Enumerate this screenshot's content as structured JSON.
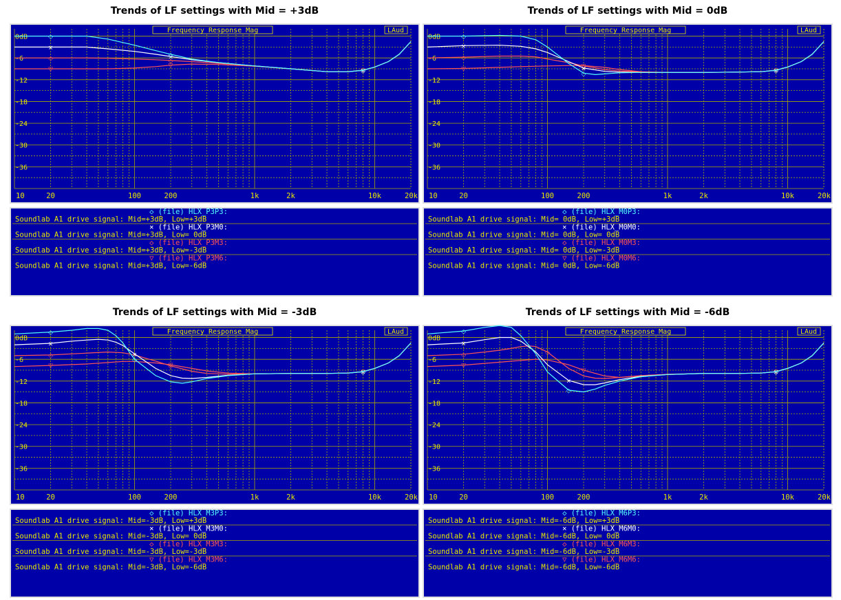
{
  "colors": {
    "background": "#0000a8",
    "grid": "#a8a800",
    "frame": "#e0e0e0",
    "panel_label": "#e8e800",
    "legend_text": "#e8e800",
    "series": [
      "#55ffff",
      "#ffffff",
      "#ff5555",
      "#ff5555"
    ]
  },
  "chart_data": [
    {
      "type": "line",
      "title": "Trends of LF settings with Mid = +3dB",
      "plot_label": "Frequency Response Mag",
      "badge": "LAud",
      "x_scale": "log",
      "xlim": [
        10,
        20000
      ],
      "ylim": [
        -42,
        2
      ],
      "x_ticks": [
        "10",
        "20",
        "100",
        "200",
        "1k",
        "2k",
        "10k",
        "20k"
      ],
      "y_ticks": [
        "0dB",
        "-6",
        "-12",
        "-18",
        "-24",
        "-30",
        "-36"
      ],
      "grid": true,
      "series": [
        {
          "marker": "◇",
          "file": "(file)",
          "name": "HLX_P3P3:",
          "description": "Soundlab A1 drive signal: Mid=+3dB, Low=+3dB",
          "x": [
            10,
            20,
            40,
            60,
            100,
            150,
            200,
            300,
            500,
            1000,
            2000,
            4000,
            6000,
            8000,
            10000,
            13000,
            16000,
            20000
          ],
          "y": [
            0,
            0,
            0,
            -0.8,
            -2.5,
            -4,
            -5,
            -6.3,
            -7.3,
            -8.2,
            -9,
            -9.8,
            -9.8,
            -9.4,
            -8.5,
            -7,
            -5,
            -1.5
          ]
        },
        {
          "marker": "×",
          "file": "(file)",
          "name": "HLX_P3M0:",
          "description": "Soundlab A1 drive signal: Mid=+3dB, Low= 0dB",
          "x": [
            10,
            20,
            40,
            60,
            100,
            150,
            200,
            300,
            500,
            1000,
            2000,
            4000,
            6000,
            8000,
            10000,
            13000,
            16000,
            20000
          ],
          "y": [
            -3,
            -3,
            -3,
            -3.5,
            -4.2,
            -5,
            -5.6,
            -6.5,
            -7.3,
            -8.2,
            -9,
            -9.8,
            -9.8,
            -9.4,
            -8.5,
            -7,
            -5,
            -1.5
          ]
        },
        {
          "marker": "◇",
          "file": "(file)",
          "name": "HLX_P3M3:",
          "description": "Soundlab A1 drive signal: Mid=+3dB, Low=-3dB",
          "x": [
            10,
            20,
            40,
            60,
            100,
            150,
            200,
            300,
            500,
            1000,
            2000,
            4000,
            6000,
            8000,
            10000,
            13000,
            16000,
            20000
          ],
          "y": [
            -6,
            -6,
            -6,
            -6.1,
            -6.3,
            -6.5,
            -6.7,
            -7,
            -7.5,
            -8.2,
            -9,
            -9.8,
            -9.8,
            -9.4,
            -8.5,
            -7,
            -5,
            -1.5
          ]
        },
        {
          "marker": "▽",
          "file": "(file)",
          "name": "HLX_P3M6:",
          "description": "Soundlab A1 drive signal: Mid=+3dB, Low=-6dB",
          "x": [
            10,
            20,
            40,
            60,
            100,
            150,
            200,
            300,
            500,
            1000,
            2000,
            4000,
            6000,
            8000,
            10000,
            13000,
            16000,
            20000
          ],
          "y": [
            -9,
            -9,
            -9,
            -9,
            -8.8,
            -8.4,
            -8,
            -7.7,
            -7.8,
            -8.3,
            -9,
            -9.8,
            -9.8,
            -9.4,
            -8.5,
            -7,
            -5,
            -1.5
          ]
        }
      ]
    },
    {
      "type": "line",
      "title": "Trends of LF settings with Mid =  0dB",
      "plot_label": "Frequency Response Mag",
      "badge": "LAud",
      "x_scale": "log",
      "xlim": [
        10,
        20000
      ],
      "ylim": [
        -42,
        2
      ],
      "x_ticks": [
        "10",
        "20",
        "100",
        "200",
        "1k",
        "2k",
        "10k",
        "20k"
      ],
      "y_ticks": [
        "0dB",
        "-6",
        "-12",
        "-18",
        "-24",
        "-30",
        "-36"
      ],
      "grid": true,
      "series": [
        {
          "marker": "◇",
          "file": "(file)",
          "name": "HLX_M0P3:",
          "description": "Soundlab A1 drive signal: Mid= 0dB, Low=+3dB",
          "x": [
            10,
            20,
            40,
            60,
            80,
            100,
            150,
            200,
            250,
            300,
            400,
            600,
            1000,
            2000,
            4000,
            6000,
            8000,
            10000,
            13000,
            16000,
            20000
          ],
          "y": [
            0,
            0,
            0.2,
            0,
            -1,
            -3,
            -7.5,
            -10.2,
            -10.6,
            -10.4,
            -10.1,
            -10,
            -10,
            -10,
            -9.9,
            -9.8,
            -9.4,
            -8.5,
            -7,
            -5,
            -1.5
          ]
        },
        {
          "marker": "×",
          "file": "(file)",
          "name": "HLX_M0M0:",
          "description": "Soundlab A1 drive signal: Mid= 0dB, Low= 0dB",
          "x": [
            10,
            20,
            40,
            60,
            80,
            100,
            150,
            200,
            300,
            400,
            600,
            1000,
            2000,
            4000,
            6000,
            8000,
            10000,
            13000,
            16000,
            20000
          ],
          "y": [
            -3,
            -2.6,
            -2.5,
            -2.8,
            -3.5,
            -4.5,
            -7,
            -8.8,
            -9.7,
            -9.9,
            -10,
            -10,
            -10,
            -9.9,
            -9.8,
            -9.4,
            -8.5,
            -7,
            -5,
            -1.5
          ]
        },
        {
          "marker": "◇",
          "file": "(file)",
          "name": "HLX_M0M3:",
          "description": "Soundlab A1 drive signal: Mid= 0dB, Low=-3dB",
          "x": [
            10,
            20,
            40,
            60,
            80,
            100,
            150,
            200,
            300,
            400,
            600,
            1000,
            2000,
            4000,
            6000,
            8000,
            10000,
            13000,
            16000,
            20000
          ],
          "y": [
            -6,
            -5.8,
            -5.5,
            -5.5,
            -5.7,
            -6.3,
            -7.3,
            -8.2,
            -9.2,
            -9.6,
            -9.9,
            -10,
            -10,
            -9.9,
            -9.8,
            -9.4,
            -8.5,
            -7,
            -5,
            -1.5
          ]
        },
        {
          "marker": "▽",
          "file": "(file)",
          "name": "HLX_M0M6:",
          "description": "Soundlab A1 drive signal: Mid= 0dB, Low=-6dB",
          "x": [
            10,
            20,
            40,
            60,
            100,
            150,
            200,
            300,
            400,
            600,
            1000,
            2000,
            4000,
            6000,
            8000,
            10000,
            13000,
            16000,
            20000
          ],
          "y": [
            -9,
            -8.9,
            -8.6,
            -8.4,
            -8.2,
            -8.1,
            -8.1,
            -8.6,
            -9.2,
            -9.8,
            -10,
            -10,
            -9.9,
            -9.8,
            -9.4,
            -8.5,
            -7,
            -5,
            -1.5
          ]
        }
      ]
    },
    {
      "type": "line",
      "title": "Trends of LF settings with Mid = -3dB",
      "plot_label": "Frequency Response Mag",
      "badge": "LAud",
      "x_scale": "log",
      "xlim": [
        10,
        20000
      ],
      "ylim": [
        -42,
        2
      ],
      "x_ticks": [
        "10",
        "20",
        "100",
        "200",
        "1k",
        "2k",
        "10k",
        "20k"
      ],
      "y_ticks": [
        "0dB",
        "-6",
        "-12",
        "-18",
        "-24",
        "-30",
        "-36"
      ],
      "grid": true,
      "series": [
        {
          "marker": "◇",
          "file": "(file)",
          "name": "HLX_M3P3:",
          "description": "Soundlab A1 drive signal: Mid=-3dB, Low=+3dB",
          "x": [
            10,
            20,
            30,
            40,
            50,
            60,
            70,
            80,
            100,
            150,
            200,
            250,
            300,
            400,
            600,
            1000,
            2000,
            4000,
            6000,
            8000,
            10000,
            13000,
            16000,
            20000
          ],
          "y": [
            1,
            1.5,
            2,
            2.5,
            2.5,
            2,
            0.5,
            -1.5,
            -6,
            -10.5,
            -12.2,
            -12.6,
            -12.2,
            -11.3,
            -10.5,
            -10,
            -9.9,
            -9.9,
            -9.8,
            -9.4,
            -8.5,
            -7,
            -5,
            -1.5
          ]
        },
        {
          "marker": "×",
          "file": "(file)",
          "name": "HLX_M3M0:",
          "description": "Soundlab A1 drive signal: Mid=-3dB, Low= 0dB",
          "x": [
            10,
            20,
            30,
            40,
            50,
            60,
            70,
            80,
            100,
            150,
            200,
            250,
            300,
            400,
            600,
            1000,
            2000,
            4000,
            6000,
            8000,
            10000,
            13000,
            16000,
            20000
          ],
          "y": [
            -2,
            -1.6,
            -1,
            -0.7,
            -0.5,
            -0.7,
            -1.3,
            -2.2,
            -4.5,
            -8.5,
            -10.5,
            -11.2,
            -11.3,
            -11,
            -10.4,
            -10,
            -9.9,
            -9.9,
            -9.8,
            -9.4,
            -8.5,
            -7,
            -5,
            -1.5
          ]
        },
        {
          "marker": "◇",
          "file": "(file)",
          "name": "HLX_M3M3:",
          "description": "Soundlab A1 drive signal: Mid=-3dB, Low=-3dB",
          "x": [
            10,
            20,
            40,
            60,
            80,
            100,
            150,
            200,
            300,
            400,
            600,
            1000,
            2000,
            4000,
            6000,
            8000,
            10000,
            13000,
            16000,
            20000
          ],
          "y": [
            -5,
            -4.8,
            -4.3,
            -4,
            -4.2,
            -4.8,
            -6.5,
            -7.8,
            -9.3,
            -9.9,
            -10.1,
            -10,
            -9.9,
            -9.9,
            -9.8,
            -9.4,
            -8.5,
            -7,
            -5,
            -1.5
          ]
        },
        {
          "marker": "▽",
          "file": "(file)",
          "name": "HLX_M3M6:",
          "description": "Soundlab A1 drive signal: Mid=-3dB, Low=-6dB",
          "x": [
            10,
            20,
            40,
            60,
            80,
            100,
            150,
            200,
            300,
            400,
            600,
            1000,
            2000,
            4000,
            6000,
            8000,
            10000,
            13000,
            16000,
            20000
          ],
          "y": [
            -8,
            -7.7,
            -7.3,
            -6.9,
            -6.6,
            -6.6,
            -7,
            -7.5,
            -8.5,
            -9.2,
            -9.8,
            -10,
            -9.9,
            -9.9,
            -9.8,
            -9.4,
            -8.5,
            -7,
            -5,
            -1.5
          ]
        }
      ]
    },
    {
      "type": "line",
      "title": "Trends of LF settings with Mid =  -6dB",
      "plot_label": "Frequency Response Mag",
      "badge": "LAud",
      "x_scale": "log",
      "xlim": [
        10,
        20000
      ],
      "ylim": [
        -42,
        2
      ],
      "x_ticks": [
        "10",
        "20",
        "100",
        "200",
        "1k",
        "2k",
        "10k",
        "20k"
      ],
      "y_ticks": [
        "0dB",
        "-6",
        "-12",
        "-18",
        "-24",
        "-30",
        "-36"
      ],
      "grid": true,
      "series": [
        {
          "marker": "◇",
          "file": "(file)",
          "name": "HLX_M6P3:",
          "description": "Soundlab A1 drive signal: Mid=-6dB, Low=+3dB",
          "x": [
            10,
            20,
            30,
            40,
            50,
            60,
            80,
            100,
            150,
            200,
            250,
            300,
            400,
            600,
            1000,
            2000,
            4000,
            6000,
            8000,
            10000,
            13000,
            16000,
            20000
          ],
          "y": [
            1,
            1.8,
            2.8,
            3.3,
            2.8,
            0.5,
            -4.5,
            -9.5,
            -14.5,
            -15,
            -14.2,
            -13.2,
            -12,
            -10.8,
            -10.2,
            -9.9,
            -9.9,
            -9.8,
            -9.4,
            -8.5,
            -7,
            -5,
            -1.5
          ]
        },
        {
          "marker": "×",
          "file": "(file)",
          "name": "HLX_M6M0:",
          "description": "Soundlab A1 drive signal: Mid=-6dB, Low= 0dB",
          "x": [
            10,
            20,
            30,
            40,
            50,
            60,
            80,
            100,
            150,
            200,
            250,
            300,
            400,
            600,
            1000,
            2000,
            4000,
            6000,
            8000,
            10000,
            13000,
            16000,
            20000
          ],
          "y": [
            -2,
            -1.5,
            -0.6,
            0,
            0,
            -1,
            -4,
            -7.5,
            -11.8,
            -13,
            -13,
            -12.5,
            -11.6,
            -10.7,
            -10.2,
            -9.9,
            -9.9,
            -9.8,
            -9.4,
            -8.5,
            -7,
            -5,
            -1.5
          ]
        },
        {
          "marker": "◇",
          "file": "(file)",
          "name": "HLX_M6M3:",
          "description": "Soundlab A1 drive signal: Mid=-6dB, Low=-3dB",
          "x": [
            10,
            20,
            30,
            40,
            50,
            60,
            70,
            80,
            100,
            150,
            200,
            250,
            300,
            400,
            600,
            1000,
            2000,
            4000,
            6000,
            8000,
            10000,
            13000,
            16000,
            20000
          ],
          "y": [
            -5,
            -4.6,
            -4,
            -3.5,
            -3,
            -2.5,
            -2.3,
            -2.5,
            -4,
            -8.5,
            -10.6,
            -11.2,
            -11.3,
            -11,
            -10.5,
            -10.1,
            -9.9,
            -9.9,
            -9.8,
            -9.4,
            -8.5,
            -7,
            -5,
            -1.5
          ]
        },
        {
          "marker": "▽",
          "file": "(file)",
          "name": "HLX_M6M6:",
          "description": "Soundlab A1 drive signal: Mid=-6dB, Low=-6dB",
          "x": [
            10,
            20,
            40,
            60,
            80,
            100,
            150,
            200,
            300,
            400,
            600,
            1000,
            2000,
            4000,
            6000,
            8000,
            10000,
            13000,
            16000,
            20000
          ],
          "y": [
            -8,
            -7.6,
            -6.8,
            -6.3,
            -6,
            -6.2,
            -7.5,
            -9,
            -10.6,
            -11,
            -10.6,
            -10.2,
            -9.9,
            -9.9,
            -9.8,
            -9.4,
            -8.5,
            -7,
            -5,
            -1.5
          ]
        }
      ]
    }
  ]
}
